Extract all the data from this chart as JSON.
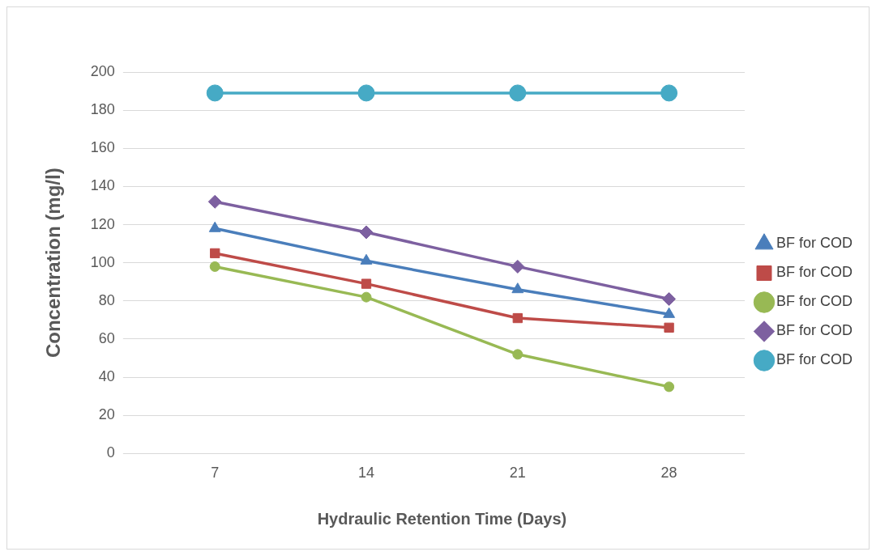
{
  "chart_data": {
    "type": "line",
    "xlabel": "Hydraulic Retention Time (Days)",
    "ylabel": "Concentration (mg/l)",
    "categories": [
      "7",
      "14",
      "21",
      "28"
    ],
    "ylim": [
      0,
      200
    ],
    "yticks": [
      0,
      20,
      40,
      60,
      80,
      100,
      120,
      140,
      160,
      180,
      200
    ],
    "grid": "y",
    "legend": "right",
    "series": [
      {
        "name": "BF for COD",
        "color": "#4a7ebb",
        "marker": "triangle",
        "values": [
          118,
          101,
          86,
          73
        ]
      },
      {
        "name": "BF for COD",
        "color": "#be4b48",
        "marker": "square",
        "values": [
          105,
          89,
          71,
          66
        ]
      },
      {
        "name": "BF for COD",
        "color": "#98b954",
        "marker": "circle",
        "values": [
          98,
          82,
          52,
          35
        ]
      },
      {
        "name": "BF for COD",
        "color": "#7d60a0",
        "marker": "diamond",
        "values": [
          132,
          116,
          98,
          81
        ]
      },
      {
        "name": "BF for COD",
        "color": "#46aac5",
        "marker": "circle",
        "values": [
          189,
          189,
          189,
          189
        ]
      }
    ]
  }
}
